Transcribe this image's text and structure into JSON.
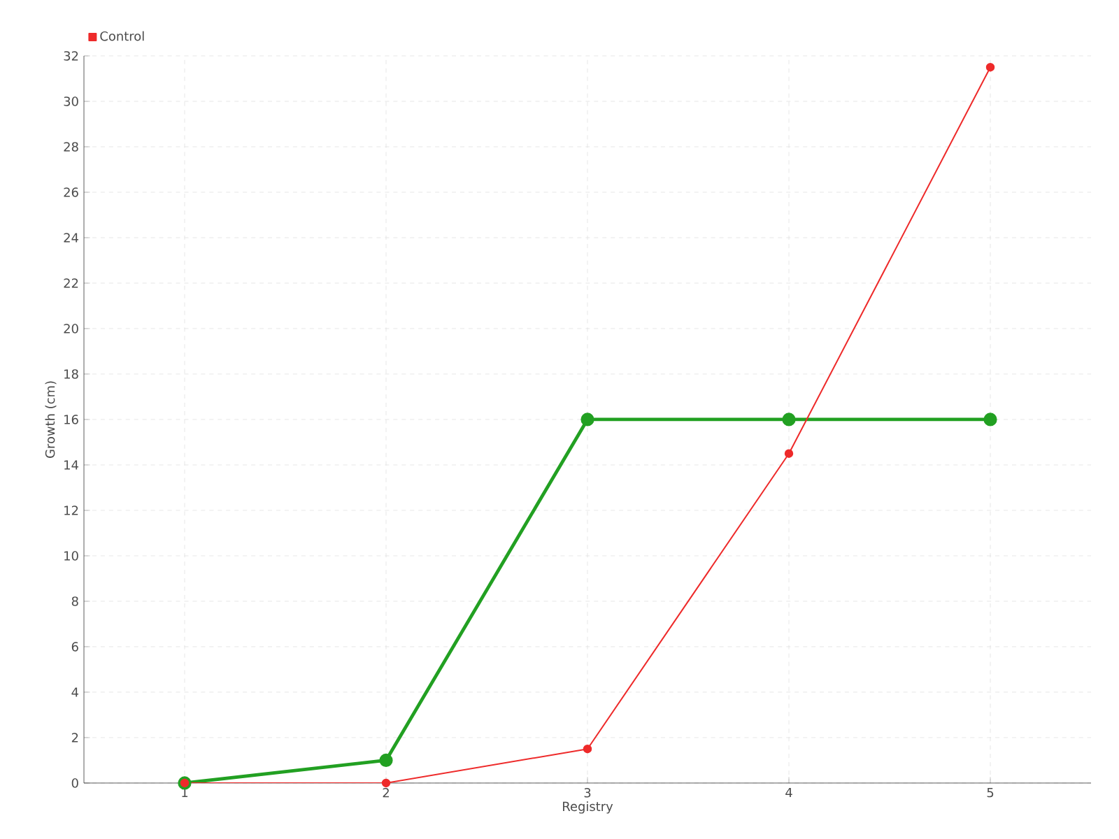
{
  "chart_data": {
    "type": "line",
    "xlabel": "Registry",
    "ylabel": "Growth (cm)",
    "x": [
      1,
      2,
      3,
      4,
      5
    ],
    "xlim": [
      0.5,
      5.5
    ],
    "xticks": [
      1,
      2,
      3,
      4,
      5
    ],
    "ylim": [
      0,
      32
    ],
    "yticks": [
      0,
      2,
      4,
      6,
      8,
      10,
      12,
      14,
      16,
      18,
      20,
      22,
      24,
      26,
      28,
      30,
      32
    ],
    "series": [
      {
        "color": "#22a022",
        "values": [
          0,
          1,
          16,
          16,
          16
        ]
      },
      {
        "name": "Control",
        "color": "#ee2a2a",
        "values": [
          0,
          0,
          1.5,
          14.5,
          31.5
        ]
      }
    ],
    "grid": true,
    "legend": "top left",
    "marker": "circle",
    "line_style": "solid"
  }
}
